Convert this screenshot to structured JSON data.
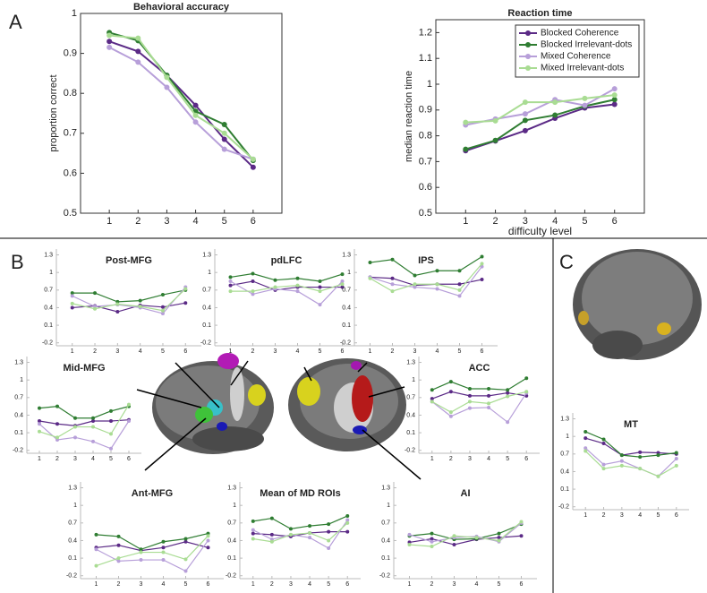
{
  "panel_labels": [
    "A",
    "B",
    "C"
  ],
  "chart_data": [
    {
      "type": "line",
      "title": "Behavioral accuracy",
      "y_label": "proportion correct",
      "x": [
        1,
        2,
        3,
        4,
        5,
        6
      ],
      "xlim": [
        0,
        7
      ],
      "xticks": [
        1,
        2,
        3,
        4,
        5,
        6
      ],
      "ylim": [
        0.5,
        1
      ],
      "yticks": [
        0.5,
        0.6,
        0.7,
        0.8,
        0.9,
        1
      ],
      "series": [
        {
          "color": "#5b2a86",
          "values": [
            0.93,
            0.905,
            0.845,
            0.77,
            0.685,
            0.615
          ]
        },
        {
          "color": "#2f7d32",
          "values": [
            0.952,
            0.932,
            0.845,
            0.755,
            0.722,
            0.632
          ]
        },
        {
          "color": "#b79fd9",
          "values": [
            0.915,
            0.878,
            0.815,
            0.728,
            0.66,
            0.635
          ]
        },
        {
          "color": "#a9dc93",
          "values": [
            0.945,
            0.938,
            0.84,
            0.745,
            0.7,
            0.635
          ]
        }
      ]
    },
    {
      "type": "line",
      "title": "Reaction time",
      "x_label": "difficulty level",
      "y_label": "median reaction time",
      "x": [
        1,
        2,
        3,
        4,
        5,
        6
      ],
      "xlim": [
        0,
        7
      ],
      "xticks": [
        1,
        2,
        3,
        4,
        5,
        6
      ],
      "ylim": [
        0.5,
        1.25
      ],
      "yticks": [
        0.5,
        0.6,
        0.7,
        0.8,
        0.9,
        1,
        1.1,
        1.2
      ],
      "legend": "upper right",
      "series": [
        {
          "name": "Blocked Coherence",
          "color": "#5b2a86",
          "values": [
            0.742,
            0.78,
            0.82,
            0.868,
            0.908,
            0.922
          ]
        },
        {
          "name": "Blocked Irrelevant-dots",
          "color": "#2f7d32",
          "values": [
            0.748,
            0.782,
            0.86,
            0.88,
            0.915,
            0.94
          ]
        },
        {
          "name": "Mixed Coherence",
          "color": "#b79fd9",
          "values": [
            0.842,
            0.865,
            0.885,
            0.94,
            0.918,
            0.982
          ]
        },
        {
          "name": "Mixed Irrelevant-dots",
          "color": "#a9dc93",
          "values": [
            0.852,
            0.858,
            0.93,
            0.93,
            0.945,
            0.958
          ]
        }
      ]
    },
    {
      "type": "line",
      "title": "Post-MFG",
      "x": [
        1,
        2,
        3,
        4,
        5,
        6
      ],
      "xlim": [
        0.3,
        6.7
      ],
      "xticks": [
        1,
        2,
        3,
        4,
        5,
        6
      ],
      "ylim": [
        -0.25,
        1.4
      ],
      "yticks": [
        -0.2,
        0.1,
        0.4,
        0.7,
        1,
        1.3
      ],
      "series": [
        {
          "color": "#5b2a86",
          "values": [
            0.4,
            0.43,
            0.33,
            0.44,
            0.41,
            0.48
          ]
        },
        {
          "color": "#2f7d32",
          "values": [
            0.65,
            0.65,
            0.5,
            0.52,
            0.62,
            0.7
          ]
        },
        {
          "color": "#b79fd9",
          "values": [
            0.6,
            0.42,
            0.45,
            0.4,
            0.3,
            0.75
          ]
        },
        {
          "color": "#a9dc93",
          "values": [
            0.47,
            0.38,
            0.46,
            0.42,
            0.35,
            0.72
          ]
        }
      ]
    },
    {
      "type": "line",
      "title": "pdLFC",
      "x": [
        1,
        2,
        3,
        4,
        5,
        6
      ],
      "xlim": [
        0.3,
        6.7
      ],
      "xticks": [
        1,
        2,
        3,
        4,
        5,
        6
      ],
      "ylim": [
        -0.25,
        1.4
      ],
      "yticks": [
        -0.2,
        0.1,
        0.4,
        0.7,
        1,
        1.3
      ],
      "series": [
        {
          "color": "#5b2a86",
          "values": [
            0.78,
            0.85,
            0.7,
            0.75,
            0.75,
            0.75
          ]
        },
        {
          "color": "#2f7d32",
          "values": [
            0.92,
            0.98,
            0.87,
            0.9,
            0.85,
            0.97
          ]
        },
        {
          "color": "#b79fd9",
          "values": [
            0.85,
            0.63,
            0.72,
            0.68,
            0.45,
            0.85
          ]
        },
        {
          "color": "#a9dc93",
          "values": [
            0.68,
            0.68,
            0.75,
            0.78,
            0.68,
            0.8
          ]
        }
      ]
    },
    {
      "type": "line",
      "title": "IPS",
      "x": [
        1,
        2,
        3,
        4,
        5,
        6
      ],
      "xlim": [
        0.3,
        6.7
      ],
      "xticks": [
        1,
        2,
        3,
        4,
        5,
        6
      ],
      "ylim": [
        -0.25,
        1.4
      ],
      "yticks": [
        -0.2,
        0.1,
        0.4,
        0.7,
        1,
        1.3
      ],
      "series": [
        {
          "color": "#5b2a86",
          "values": [
            0.92,
            0.9,
            0.78,
            0.8,
            0.8,
            0.88
          ]
        },
        {
          "color": "#2f7d32",
          "values": [
            1.17,
            1.22,
            0.95,
            1.03,
            1.03,
            1.27
          ]
        },
        {
          "color": "#b79fd9",
          "values": [
            0.92,
            0.8,
            0.75,
            0.72,
            0.6,
            1.1
          ]
        },
        {
          "color": "#a9dc93",
          "values": [
            0.9,
            0.68,
            0.8,
            0.8,
            0.7,
            1.15
          ]
        }
      ]
    },
    {
      "type": "line",
      "title": "Mid-MFG",
      "x": [
        1,
        2,
        3,
        4,
        5,
        6
      ],
      "xlim": [
        0.3,
        6.7
      ],
      "xticks": [
        1,
        2,
        3,
        4,
        5,
        6
      ],
      "ylim": [
        -0.25,
        1.4
      ],
      "yticks": [
        -0.2,
        0.1,
        0.4,
        0.7,
        1,
        1.3
      ],
      "series": [
        {
          "color": "#5b2a86",
          "values": [
            0.3,
            0.25,
            0.22,
            0.3,
            0.3,
            0.32
          ]
        },
        {
          "color": "#2f7d32",
          "values": [
            0.52,
            0.55,
            0.35,
            0.35,
            0.47,
            0.55
          ]
        },
        {
          "color": "#b79fd9",
          "values": [
            0.25,
            -0.02,
            0.02,
            -0.05,
            -0.17,
            0.3
          ]
        },
        {
          "color": "#a9dc93",
          "values": [
            0.12,
            0.02,
            0.2,
            0.2,
            0.08,
            0.58
          ]
        }
      ]
    },
    {
      "type": "line",
      "title": "ACC",
      "x": [
        1,
        2,
        3,
        4,
        5,
        6
      ],
      "xlim": [
        0.3,
        6.7
      ],
      "xticks": [
        1,
        2,
        3,
        4,
        5,
        6
      ],
      "ylim": [
        -0.25,
        1.4
      ],
      "yticks": [
        -0.2,
        0.1,
        0.4,
        0.7,
        1,
        1.3
      ],
      "series": [
        {
          "color": "#5b2a86",
          "values": [
            0.68,
            0.8,
            0.73,
            0.73,
            0.78,
            0.73
          ]
        },
        {
          "color": "#2f7d32",
          "values": [
            0.83,
            0.97,
            0.85,
            0.85,
            0.83,
            1.03
          ]
        },
        {
          "color": "#b79fd9",
          "values": [
            0.63,
            0.38,
            0.52,
            0.53,
            0.28,
            0.78
          ]
        },
        {
          "color": "#a9dc93",
          "values": [
            0.63,
            0.45,
            0.63,
            0.6,
            0.72,
            0.8
          ]
        }
      ]
    },
    {
      "type": "line",
      "title": "Ant-MFG",
      "x": [
        1,
        2,
        3,
        4,
        5,
        6
      ],
      "xlim": [
        0.3,
        6.7
      ],
      "xticks": [
        1,
        2,
        3,
        4,
        5,
        6
      ],
      "ylim": [
        -0.25,
        1.4
      ],
      "yticks": [
        -0.2,
        0.1,
        0.4,
        0.7,
        1,
        1.3
      ],
      "series": [
        {
          "color": "#5b2a86",
          "values": [
            0.28,
            0.32,
            0.23,
            0.28,
            0.38,
            0.28
          ]
        },
        {
          "color": "#2f7d32",
          "values": [
            0.5,
            0.47,
            0.25,
            0.38,
            0.43,
            0.52
          ]
        },
        {
          "color": "#b79fd9",
          "values": [
            0.25,
            0.05,
            0.07,
            0.07,
            -0.12,
            0.4
          ]
        },
        {
          "color": "#a9dc93",
          "values": [
            -0.03,
            0.1,
            0.2,
            0.2,
            0.08,
            0.48
          ]
        }
      ]
    },
    {
      "type": "line",
      "title": "Mean of MD ROIs",
      "x": [
        1,
        2,
        3,
        4,
        5,
        6
      ],
      "xlim": [
        0.3,
        6.7
      ],
      "xticks": [
        1,
        2,
        3,
        4,
        5,
        6
      ],
      "ylim": [
        -0.25,
        1.4
      ],
      "yticks": [
        -0.2,
        0.1,
        0.4,
        0.7,
        1,
        1.3
      ],
      "series": [
        {
          "color": "#5b2a86",
          "values": [
            0.52,
            0.5,
            0.47,
            0.53,
            0.55,
            0.55
          ]
        },
        {
          "color": "#2f7d32",
          "values": [
            0.73,
            0.78,
            0.6,
            0.65,
            0.68,
            0.82
          ]
        },
        {
          "color": "#b79fd9",
          "values": [
            0.58,
            0.42,
            0.5,
            0.45,
            0.27,
            0.75
          ]
        },
        {
          "color": "#a9dc93",
          "values": [
            0.43,
            0.38,
            0.5,
            0.53,
            0.4,
            0.7
          ]
        }
      ]
    },
    {
      "type": "line",
      "title": "AI",
      "x": [
        1,
        2,
        3,
        4,
        5,
        6
      ],
      "xlim": [
        0.3,
        6.7
      ],
      "xticks": [
        1,
        2,
        3,
        4,
        5,
        6
      ],
      "ylim": [
        -0.25,
        1.4
      ],
      "yticks": [
        -0.2,
        0.1,
        0.4,
        0.7,
        1,
        1.3
      ],
      "series": [
        {
          "color": "#5b2a86",
          "values": [
            0.37,
            0.43,
            0.33,
            0.42,
            0.45,
            0.48
          ]
        },
        {
          "color": "#2f7d32",
          "values": [
            0.48,
            0.52,
            0.42,
            0.43,
            0.52,
            0.68
          ]
        },
        {
          "color": "#b79fd9",
          "values": [
            0.5,
            0.38,
            0.45,
            0.47,
            0.38,
            0.7
          ]
        },
        {
          "color": "#a9dc93",
          "values": [
            0.33,
            0.3,
            0.48,
            0.45,
            0.4,
            0.72
          ]
        }
      ]
    },
    {
      "type": "line",
      "title": "MT",
      "x": [
        1,
        2,
        3,
        4,
        5,
        6
      ],
      "xlim": [
        0.3,
        6.7
      ],
      "xticks": [
        1,
        2,
        3,
        4,
        5,
        6
      ],
      "ylim": [
        -0.25,
        1.4
      ],
      "yticks": [
        -0.2,
        0.1,
        0.4,
        0.7,
        1,
        1.3
      ],
      "series": [
        {
          "color": "#5b2a86",
          "values": [
            0.97,
            0.88,
            0.68,
            0.73,
            0.72,
            0.7
          ]
        },
        {
          "color": "#2f7d32",
          "values": [
            1.08,
            0.95,
            0.68,
            0.65,
            0.68,
            0.72
          ]
        },
        {
          "color": "#b79fd9",
          "values": [
            0.8,
            0.52,
            0.58,
            0.45,
            0.32,
            0.62
          ]
        },
        {
          "color": "#a9dc93",
          "values": [
            0.75,
            0.45,
            0.5,
            0.45,
            0.32,
            0.5
          ]
        }
      ]
    }
  ]
}
